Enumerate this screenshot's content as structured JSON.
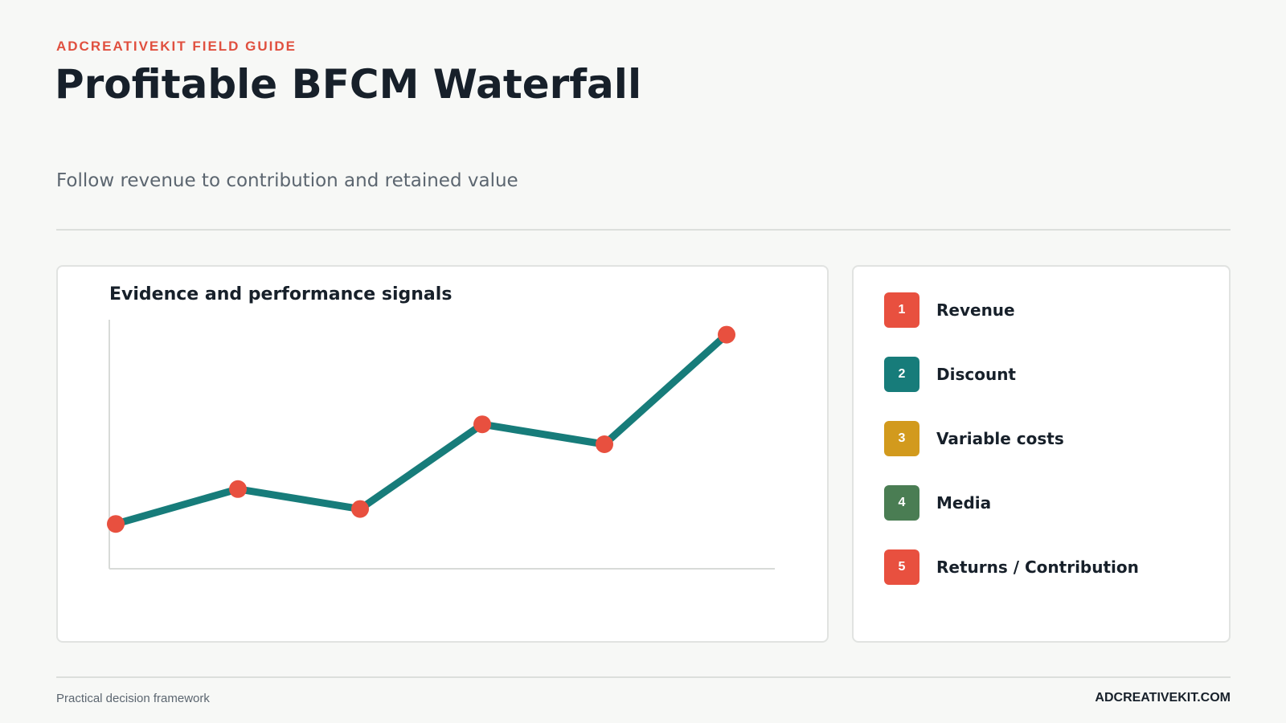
{
  "header": {
    "eyebrow": "ADCREATIVEKIT FIELD GUIDE",
    "title": "Profitable BFCM Waterfall",
    "subtitle": "Follow revenue to contribution and retained value"
  },
  "chart_data": {
    "type": "line",
    "title": "Evidence and performance signals",
    "x": [
      1,
      2,
      3,
      4,
      5,
      6
    ],
    "series": [
      {
        "values": [
          18,
          32,
          24,
          58,
          50,
          94
        ]
      }
    ],
    "ylim": [
      0,
      100
    ],
    "line_color": "#177c7a",
    "marker_color": "#e8503f",
    "grid": false
  },
  "legend": {
    "items": [
      {
        "num": "1",
        "label": "Revenue",
        "color": "#e8503f"
      },
      {
        "num": "2",
        "label": "Discount",
        "color": "#177c7a"
      },
      {
        "num": "3",
        "label": "Variable costs",
        "color": "#d29a1d"
      },
      {
        "num": "4",
        "label": "Media",
        "color": "#4a7d53"
      },
      {
        "num": "5",
        "label": "Returns / Contribution",
        "color": "#e8503f"
      }
    ]
  },
  "footer": {
    "left": "Practical decision framework",
    "right": "ADCREATIVEKIT.COM"
  }
}
